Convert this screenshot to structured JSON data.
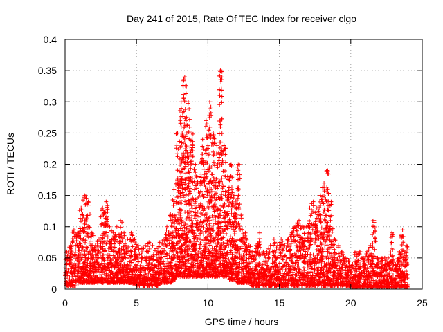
{
  "chart_data": {
    "type": "scatter",
    "title": "Day 241 of 2015, Rate Of TEC Index for receiver clgo",
    "xlabel": "GPS time / hours",
    "ylabel": "ROTI / TECUs",
    "xlim": [
      0,
      25
    ],
    "ylim": [
      0,
      0.4
    ],
    "xticks": [
      0,
      5,
      10,
      15,
      20,
      25
    ],
    "xtick_labels": [
      "0",
      "5",
      "10",
      "15",
      "20",
      "25"
    ],
    "yticks": [
      0,
      0.05,
      0.1,
      0.15,
      0.2,
      0.25,
      0.3,
      0.35,
      0.4
    ],
    "ytick_labels": [
      "0",
      "0.05",
      "0.1",
      "0.15",
      "0.2",
      "0.25",
      "0.3",
      "0.35",
      "0.4"
    ],
    "grid": true,
    "marker": "+",
    "marker_color": "#ff0000",
    "envelope": [
      [
        0.0,
        0.005,
        0.06
      ],
      [
        0.25,
        0.005,
        0.07
      ],
      [
        0.5,
        0.005,
        0.095
      ],
      [
        0.75,
        0.008,
        0.09
      ],
      [
        1.0,
        0.01,
        0.13
      ],
      [
        1.25,
        0.01,
        0.15
      ],
      [
        1.5,
        0.01,
        0.14
      ],
      [
        1.75,
        0.01,
        0.09
      ],
      [
        2.0,
        0.01,
        0.07
      ],
      [
        2.25,
        0.01,
        0.08
      ],
      [
        2.5,
        0.01,
        0.13
      ],
      [
        2.75,
        0.01,
        0.14
      ],
      [
        3.0,
        0.01,
        0.1
      ],
      [
        3.25,
        0.01,
        0.09
      ],
      [
        3.5,
        0.01,
        0.1
      ],
      [
        3.75,
        0.01,
        0.11
      ],
      [
        4.0,
        0.01,
        0.09
      ],
      [
        4.25,
        0.01,
        0.08
      ],
      [
        4.5,
        0.01,
        0.09
      ],
      [
        4.75,
        0.008,
        0.08
      ],
      [
        5.0,
        0.005,
        0.07
      ],
      [
        5.25,
        0.005,
        0.065
      ],
      [
        5.5,
        0.005,
        0.07
      ],
      [
        5.75,
        0.005,
        0.075
      ],
      [
        6.0,
        0.005,
        0.07
      ],
      [
        6.25,
        0.005,
        0.065
      ],
      [
        6.5,
        0.008,
        0.075
      ],
      [
        6.75,
        0.01,
        0.08
      ],
      [
        7.0,
        0.01,
        0.1
      ],
      [
        7.25,
        0.01,
        0.12
      ],
      [
        7.5,
        0.015,
        0.16
      ],
      [
        7.75,
        0.02,
        0.25
      ],
      [
        8.0,
        0.02,
        0.3
      ],
      [
        8.25,
        0.02,
        0.34
      ],
      [
        8.5,
        0.02,
        0.3
      ],
      [
        8.75,
        0.02,
        0.25
      ],
      [
        9.0,
        0.02,
        0.2
      ],
      [
        9.25,
        0.02,
        0.18
      ],
      [
        9.5,
        0.02,
        0.24
      ],
      [
        9.75,
        0.02,
        0.27
      ],
      [
        10.0,
        0.02,
        0.3
      ],
      [
        10.25,
        0.02,
        0.25
      ],
      [
        10.5,
        0.02,
        0.23
      ],
      [
        10.75,
        0.02,
        0.35
      ],
      [
        11.0,
        0.02,
        0.23
      ],
      [
        11.25,
        0.02,
        0.18
      ],
      [
        11.5,
        0.015,
        0.2
      ],
      [
        11.75,
        0.015,
        0.15
      ],
      [
        12.0,
        0.01,
        0.2
      ],
      [
        12.25,
        0.01,
        0.12
      ],
      [
        12.5,
        0.01,
        0.09
      ],
      [
        12.75,
        0.01,
        0.07
      ],
      [
        13.0,
        0.005,
        0.06
      ],
      [
        13.25,
        0.005,
        0.07
      ],
      [
        13.5,
        0.005,
        0.09
      ],
      [
        13.75,
        0.005,
        0.06
      ],
      [
        14.0,
        0.005,
        0.06
      ],
      [
        14.25,
        0.005,
        0.07
      ],
      [
        14.5,
        0.005,
        0.08
      ],
      [
        14.75,
        0.005,
        0.07
      ],
      [
        15.0,
        0.005,
        0.08
      ],
      [
        15.25,
        0.005,
        0.07
      ],
      [
        15.5,
        0.005,
        0.08
      ],
      [
        15.75,
        0.005,
        0.09
      ],
      [
        16.0,
        0.005,
        0.1
      ],
      [
        16.25,
        0.005,
        0.11
      ],
      [
        16.5,
        0.005,
        0.1
      ],
      [
        16.75,
        0.005,
        0.1
      ],
      [
        17.0,
        0.005,
        0.13
      ],
      [
        17.25,
        0.005,
        0.14
      ],
      [
        17.5,
        0.005,
        0.13
      ],
      [
        17.75,
        0.005,
        0.15
      ],
      [
        18.0,
        0.005,
        0.17
      ],
      [
        18.25,
        0.005,
        0.19
      ],
      [
        18.5,
        0.005,
        0.14
      ],
      [
        18.75,
        0.005,
        0.08
      ],
      [
        19.0,
        0.005,
        0.07
      ],
      [
        19.25,
        0.005,
        0.06
      ],
      [
        19.5,
        0.005,
        0.05
      ],
      [
        19.75,
        0.005,
        0.045
      ],
      [
        20.0,
        0.003,
        0.04
      ],
      [
        20.25,
        0.003,
        0.06
      ],
      [
        20.5,
        0.003,
        0.06
      ],
      [
        20.75,
        0.003,
        0.05
      ],
      [
        21.0,
        0.003,
        0.06
      ],
      [
        21.25,
        0.003,
        0.07
      ],
      [
        21.5,
        0.003,
        0.11
      ],
      [
        21.75,
        0.003,
        0.05
      ],
      [
        22.0,
        0.003,
        0.05
      ],
      [
        22.25,
        0.003,
        0.05
      ],
      [
        22.5,
        0.003,
        0.05
      ],
      [
        22.75,
        0.003,
        0.09
      ],
      [
        23.0,
        0.003,
        0.04
      ],
      [
        23.25,
        0.003,
        0.06
      ],
      [
        23.5,
        0.003,
        0.095
      ],
      [
        23.75,
        0.003,
        0.07
      ]
    ]
  }
}
